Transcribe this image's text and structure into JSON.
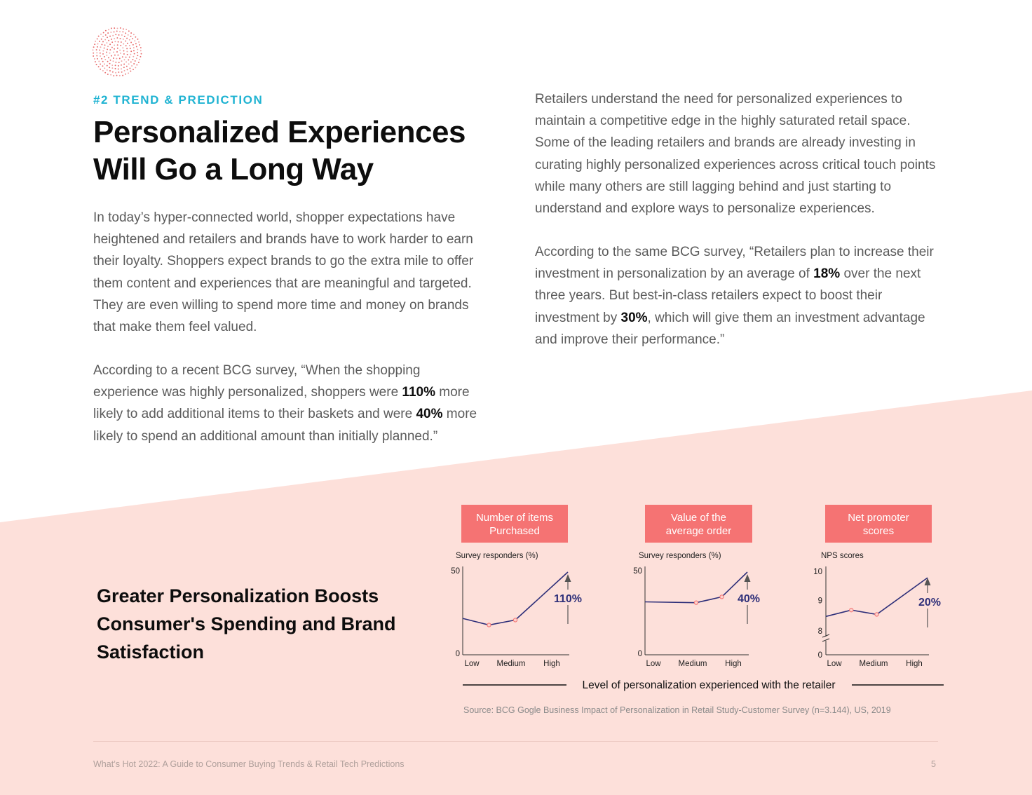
{
  "colors": {
    "accent": "#1fb3d2",
    "pink_bg": "#fde0da",
    "badge": "#f57373",
    "line": "#2e2f79",
    "marker": "#f57373"
  },
  "header": {
    "logo_icon": "dotted-circle-logo-icon",
    "eyebrow": "#2 TREND & PREDICTION",
    "title": "Personalized Experiences Will Go a Long Way"
  },
  "left_column": {
    "p1": "In today’s hyper-connected world, shopper expectations have heightened and retailers and brands have to work harder to earn their loyalty. Shoppers expect brands to go the extra mile to offer them content and experiences that are meaningful and targeted. They are even willing to spend more time and money on brands that make them feel valued.",
    "p2": {
      "t1": "According to a recent BCG survey, “When the shopping experience was highly personalized, shoppers were ",
      "b1": "110%",
      "t2": " more likely to add additional items to their baskets and were ",
      "b2": "40%",
      "t3": " more likely to spend an additional amount than initially planned.”"
    }
  },
  "right_column": {
    "p1": "Retailers understand the need for personalized experiences to maintain a competitive edge in the highly saturated retail space. Some of the leading retailers and brands are already investing in curating highly personalized experiences across critical touch points while many others are still lagging behind and just starting to understand and explore ways to personalize experiences.",
    "p2": {
      "t1": "According to the same BCG survey, “Retailers plan to increase their investment in personalization by an average of ",
      "b1": "18%",
      "t2": " over the next three years. But best-in-class retailers expect to boost their investment by ",
      "b2": "30%",
      "t3": ", which will give them an investment advantage and improve their performance.”"
    }
  },
  "infographic": {
    "title": "Greater Personalization Boosts Consumer's Spending and Brand Satisfaction",
    "x_axis_caption": "Level of personalization experienced with the retailer",
    "source": "Source: BCG Gogle Business Impact of Personalization in Retail Study-Customer Survey (n=3.144), US, 2019"
  },
  "chart_data": [
    {
      "type": "line",
      "title": "Number of items Purchased",
      "title_lines": [
        "Number of items",
        "Purchased"
      ],
      "ylabel": "Survey responders (%)",
      "categories": [
        "Low",
        "Medium",
        "High"
      ],
      "y_ticks": [
        "50",
        "0"
      ],
      "ylim": [
        0,
        50
      ],
      "series": [
        {
          "x": [
            0,
            0.5,
            1,
            2
          ],
          "values": [
            22,
            18,
            21,
            50
          ]
        }
      ],
      "annotation": "110%"
    },
    {
      "type": "line",
      "title": "Value of the average order",
      "title_lines": [
        "Value of the",
        "average order"
      ],
      "ylabel": "Survey responders (%)",
      "categories": [
        "Low",
        "Medium",
        "High"
      ],
      "y_ticks": [
        "50",
        "0"
      ],
      "ylim": [
        0,
        50
      ],
      "series": [
        {
          "x": [
            0,
            1,
            1.5,
            2
          ],
          "values": [
            32,
            31.5,
            35,
            50
          ]
        }
      ],
      "annotation": "40%"
    },
    {
      "type": "line",
      "title": "Net promoter scores",
      "title_lines": [
        "Net promoter",
        "scores"
      ],
      "ylabel": "NPS scores",
      "categories": [
        "Low",
        "Medium",
        "High"
      ],
      "y_ticks": [
        "10",
        "9",
        "8",
        "0"
      ],
      "ylim": [
        8,
        10
      ],
      "axis_break": true,
      "series": [
        {
          "x": [
            0,
            0.5,
            1,
            2
          ],
          "values": [
            8.45,
            8.67,
            8.52,
            9.78
          ]
        }
      ],
      "annotation": "20%"
    }
  ],
  "footer": {
    "text": "What’s Hot 2022: A Guide to Consumer Buying Trends & Retail Tech Predictions",
    "page": "5"
  }
}
